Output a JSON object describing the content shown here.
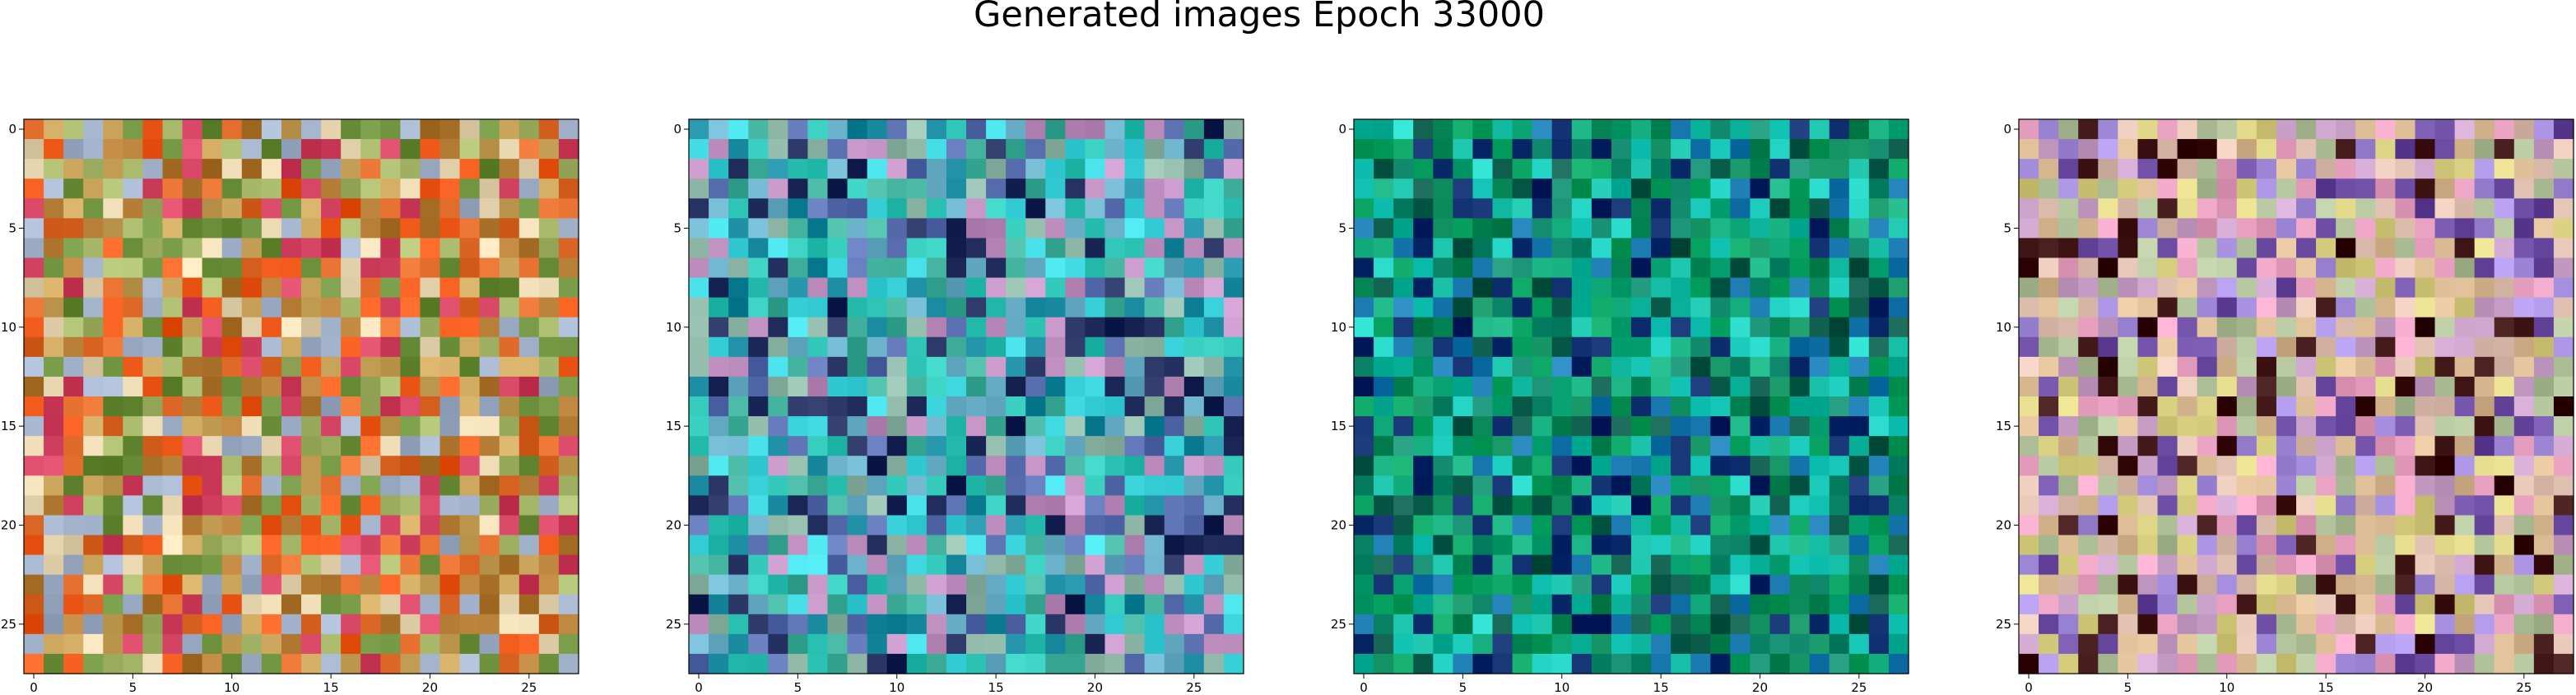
{
  "figure": {
    "title": "Generated images Epoch 33000"
  },
  "chart_data": [
    {
      "type": "heatmap",
      "panel": 1,
      "image_shape": [
        28,
        28,
        3
      ],
      "xlim": [
        -0.5,
        27.5
      ],
      "ylim": [
        27.5,
        -0.5
      ],
      "x_ticks": [
        0,
        5,
        10,
        15,
        20,
        25
      ],
      "y_ticks": [
        0,
        5,
        10,
        15,
        20,
        25
      ],
      "x_tick_labels": [
        "0",
        "5",
        "10",
        "15",
        "20",
        "25"
      ],
      "y_tick_labels": [
        "0",
        "5",
        "10",
        "15",
        "20",
        "25"
      ],
      "dominant_palette": [
        "#c9a25a",
        "#a7b86a",
        "#e06a2a",
        "#f05a1a",
        "#d24060",
        "#e8d6b0",
        "#9fb0c8",
        "#6b8f3a",
        "#b07830"
      ],
      "grid": false
    },
    {
      "type": "heatmap",
      "panel": 2,
      "image_shape": [
        28,
        28,
        3
      ],
      "xlim": [
        -0.5,
        27.5
      ],
      "ylim": [
        27.5,
        -0.5
      ],
      "x_ticks": [
        0,
        5,
        10,
        15,
        20,
        25
      ],
      "y_ticks": [
        0,
        5,
        10,
        15,
        20,
        25
      ],
      "x_tick_labels": [
        "0",
        "5",
        "10",
        "15",
        "20",
        "25"
      ],
      "y_tick_labels": [
        "0",
        "5",
        "10",
        "15",
        "20",
        "25"
      ],
      "dominant_palette": [
        "#3fae9a",
        "#2ec4b6",
        "#6ab0c8",
        "#1a8aa0",
        "#8fb8a8",
        "#c090c0",
        "#1e2a5a",
        "#40d8e0",
        "#5a6fb0"
      ],
      "grid": false
    },
    {
      "type": "heatmap",
      "panel": 3,
      "image_shape": [
        28,
        28,
        3
      ],
      "xlim": [
        -0.5,
        27.5
      ],
      "ylim": [
        27.5,
        -0.5
      ],
      "x_ticks": [
        0,
        5,
        10,
        15,
        20,
        25
      ],
      "y_ticks": [
        0,
        5,
        10,
        15,
        20,
        25
      ],
      "x_tick_labels": [
        "0",
        "5",
        "10",
        "15",
        "20",
        "25"
      ],
      "y_tick_labels": [
        "0",
        "5",
        "10",
        "15",
        "20",
        "25"
      ],
      "dominant_palette": [
        "#0a8a5a",
        "#0fa878",
        "#138c70",
        "#10b8a0",
        "#0a5a4a",
        "#20d0c0",
        "#0a2a6a",
        "#1a7ab0",
        "#06a060"
      ],
      "grid": false
    },
    {
      "type": "heatmap",
      "panel": 4,
      "image_shape": [
        28,
        28,
        3
      ],
      "xlim": [
        -0.5,
        27.5
      ],
      "ylim": [
        27.5,
        -0.5
      ],
      "x_ticks": [
        0,
        5,
        10,
        15,
        20,
        25
      ],
      "y_ticks": [
        0,
        5,
        10,
        15,
        20,
        25
      ],
      "x_tick_labels": [
        "0",
        "5",
        "10",
        "15",
        "20",
        "25"
      ],
      "y_tick_labels": [
        "0",
        "5",
        "10",
        "15",
        "20",
        "25"
      ],
      "dominant_palette": [
        "#e0c0b0",
        "#d8b890",
        "#c8a0c8",
        "#b0c098",
        "#e8a0c0",
        "#a890e0",
        "#d8d080",
        "#3a1010",
        "#6a4aa0"
      ],
      "grid": false
    }
  ]
}
